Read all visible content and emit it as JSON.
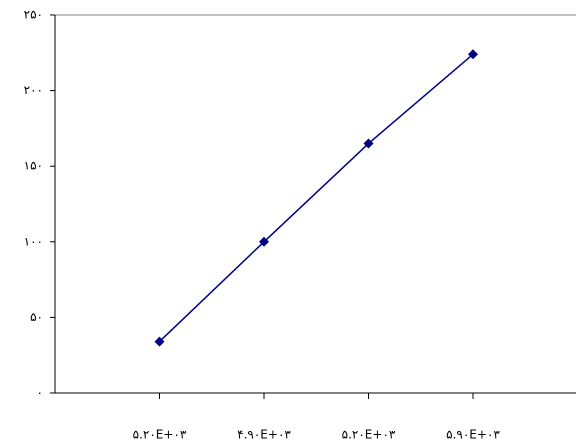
{
  "chart_data": {
    "type": "line",
    "categories": [
      "۵.۲۰E+۰۳",
      "۴.۹۰E+۰۳",
      "۵.۲۰E+۰۳",
      "۵.۹۰E+۰۳"
    ],
    "series": [
      {
        "color": "#000080",
        "values": [
          34,
          100,
          165,
          224
        ]
      }
    ],
    "ylim": [
      0,
      250
    ],
    "yticks": [
      {
        "value": 0,
        "label": "۰"
      },
      {
        "value": 50,
        "label": "۵۰"
      },
      {
        "value": 100,
        "label": "۱۰۰"
      },
      {
        "value": 150,
        "label": "۱۵۰"
      },
      {
        "value": 200,
        "label": "۲۰۰"
      },
      {
        "value": 250,
        "label": "۲۵۰"
      }
    ],
    "grid": false
  }
}
